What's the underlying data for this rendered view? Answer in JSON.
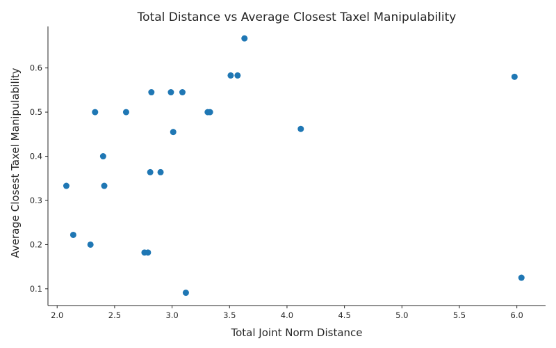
{
  "chart_data": {
    "type": "scatter",
    "title": "Total Distance vs Average Closest Taxel Manipulability",
    "xlabel": "Total Joint Norm Distance",
    "ylabel": "Average Closest Taxel Manipulability",
    "xlim": [
      1.92,
      6.25
    ],
    "ylim": [
      0.062,
      0.694
    ],
    "xticks": [
      2.0,
      2.5,
      3.0,
      3.5,
      4.0,
      4.5,
      5.0,
      5.5,
      6.0
    ],
    "xtick_labels": [
      "2.0",
      "2.5",
      "3.0",
      "3.5",
      "4.0",
      "4.5",
      "5.0",
      "5.5",
      "6.0"
    ],
    "yticks": [
      0.1,
      0.2,
      0.3,
      0.4,
      0.5,
      0.6
    ],
    "ytick_labels": [
      "0.1",
      "0.2",
      "0.3",
      "0.4",
      "0.5",
      "0.6"
    ],
    "grid": false,
    "marker_color": "#1f77b4",
    "points": [
      {
        "x": 2.08,
        "y": 0.333
      },
      {
        "x": 2.14,
        "y": 0.222
      },
      {
        "x": 2.29,
        "y": 0.2
      },
      {
        "x": 2.33,
        "y": 0.5
      },
      {
        "x": 2.4,
        "y": 0.4
      },
      {
        "x": 2.41,
        "y": 0.333
      },
      {
        "x": 2.6,
        "y": 0.5
      },
      {
        "x": 2.76,
        "y": 0.182
      },
      {
        "x": 2.79,
        "y": 0.182
      },
      {
        "x": 2.81,
        "y": 0.364
      },
      {
        "x": 2.82,
        "y": 0.545
      },
      {
        "x": 2.9,
        "y": 0.364
      },
      {
        "x": 2.99,
        "y": 0.545
      },
      {
        "x": 3.01,
        "y": 0.455
      },
      {
        "x": 3.09,
        "y": 0.545
      },
      {
        "x": 3.12,
        "y": 0.091
      },
      {
        "x": 3.31,
        "y": 0.5
      },
      {
        "x": 3.33,
        "y": 0.5
      },
      {
        "x": 3.51,
        "y": 0.583
      },
      {
        "x": 3.57,
        "y": 0.583
      },
      {
        "x": 3.63,
        "y": 0.667
      },
      {
        "x": 4.12,
        "y": 0.462
      },
      {
        "x": 5.98,
        "y": 0.58
      },
      {
        "x": 6.04,
        "y": 0.125
      }
    ]
  }
}
